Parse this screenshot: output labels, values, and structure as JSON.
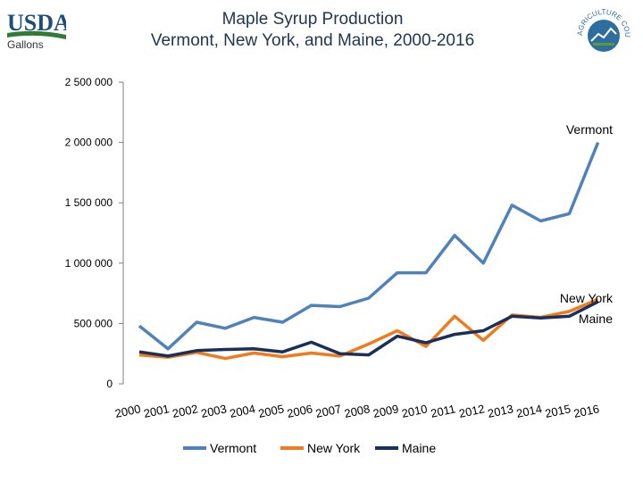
{
  "header": {
    "logo_text": "USDA",
    "unit_label": "Gallons",
    "title_line1": "Maple Syrup Production",
    "title_line2": "Vermont, New York, and Maine, 2000-2016",
    "seal_text": "AGRICULTURE COUNTS"
  },
  "chart_data": {
    "type": "line",
    "title": "Maple Syrup Production — Vermont, New York, and Maine, 2000-2016",
    "ylabel": "Gallons",
    "xlabel": "",
    "ylim": [
      0,
      2500000
    ],
    "yticks": [
      0,
      500000,
      1000000,
      1500000,
      2000000,
      2500000
    ],
    "ytick_labels": [
      "0",
      "500 000",
      "1 000 000",
      "1 500 000",
      "2 000 000",
      "2 500 000"
    ],
    "categories": [
      "2000",
      "2001",
      "2002",
      "2003",
      "2004",
      "2005",
      "2006",
      "2007",
      "2008",
      "2009",
      "2010",
      "2011",
      "2012",
      "2013",
      "2014",
      "2015",
      "2016"
    ],
    "legend_position": "bottom",
    "series": [
      {
        "name": "Vermont",
        "color": "#4f81bd",
        "values": [
          480000,
          290000,
          510000,
          460000,
          550000,
          510000,
          650000,
          640000,
          710000,
          920000,
          920000,
          1230000,
          1000000,
          1480000,
          1350000,
          1410000,
          2000000
        ]
      },
      {
        "name": "New York",
        "color": "#f07b1d",
        "values": [
          240000,
          220000,
          260000,
          210000,
          255000,
          225000,
          255000,
          230000,
          330000,
          440000,
          310000,
          560000,
          360000,
          570000,
          550000,
          600000,
          700000
        ]
      },
      {
        "name": "Maine",
        "color": "#1a2f5c",
        "values": [
          265000,
          230000,
          275000,
          285000,
          290000,
          265000,
          345000,
          250000,
          240000,
          395000,
          340000,
          410000,
          440000,
          560000,
          545000,
          560000,
          680000
        ]
      }
    ],
    "annotations": [
      "Vermont",
      "New York",
      "Maine"
    ]
  }
}
